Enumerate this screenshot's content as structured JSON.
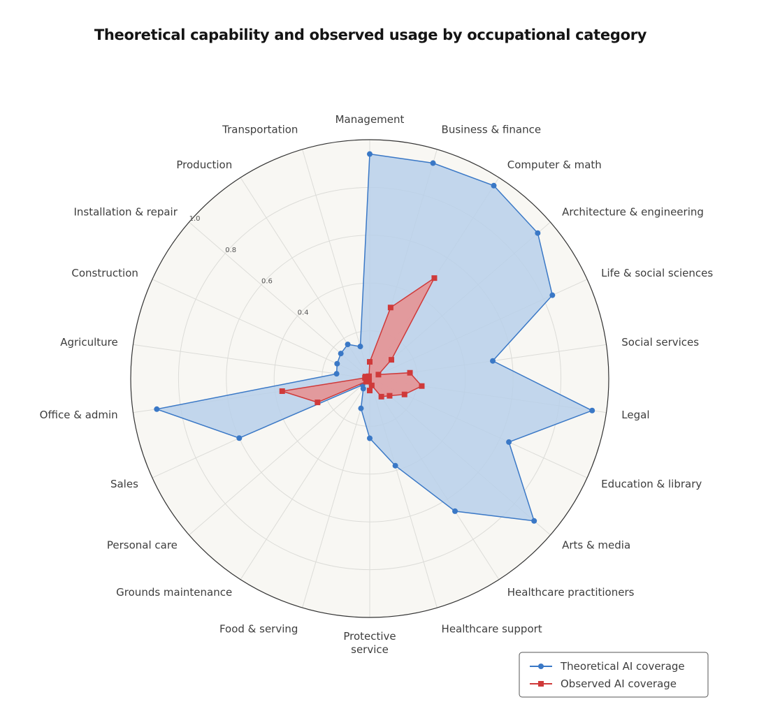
{
  "colors": {
    "background": "#f8f7f3",
    "grid": "#dcdcd8",
    "theoretical": "#3a78c6",
    "theoretical_fill": "#b9d0ea",
    "observed": "#cf3a3a",
    "observed_fill": "#e88f8f"
  },
  "chart_data": {
    "type": "radar",
    "title": "Theoretical capability and observed usage by occupational category",
    "categories": [
      "Management",
      "Business & finance",
      "Computer & math",
      "Architecture & engineering",
      "Life & social sciences",
      "Social services",
      "Legal",
      "Education & library",
      "Arts & media",
      "Healthcare practitioners",
      "Healthcare support",
      "Protective service",
      "Food & serving",
      "Grounds maintenance",
      "Personal care",
      "Sales",
      "Office & admin",
      "Agriculture",
      "Construction",
      "Installation & repair",
      "Production",
      "Transportation"
    ],
    "r_ticks": [
      0.4,
      0.6,
      0.8,
      1.0
    ],
    "r_range": [
      0,
      1.0
    ],
    "r_labels": [
      "0.4",
      "0.6",
      "0.8",
      "1.0"
    ],
    "grid": true,
    "legend_position": "bottom-right",
    "series": [
      {
        "name": "Theoretical AI coverage",
        "marker": "circle",
        "values": [
          0.94,
          0.94,
          0.96,
          0.93,
          0.84,
          0.52,
          0.94,
          0.64,
          0.91,
          0.66,
          0.38,
          0.25,
          0.13,
          0.05,
          0.04,
          0.6,
          0.9,
          0.14,
          0.15,
          0.16,
          0.17,
          0.14
        ]
      },
      {
        "name": "Observed AI coverage",
        "marker": "square",
        "values": [
          0.07,
          0.31,
          0.5,
          0.12,
          0.04,
          0.17,
          0.22,
          0.16,
          0.11,
          0.09,
          0.03,
          0.05,
          0.01,
          0.01,
          0.02,
          0.24,
          0.37,
          0.02,
          0.02,
          0.01,
          0.01,
          0.01
        ]
      }
    ]
  }
}
